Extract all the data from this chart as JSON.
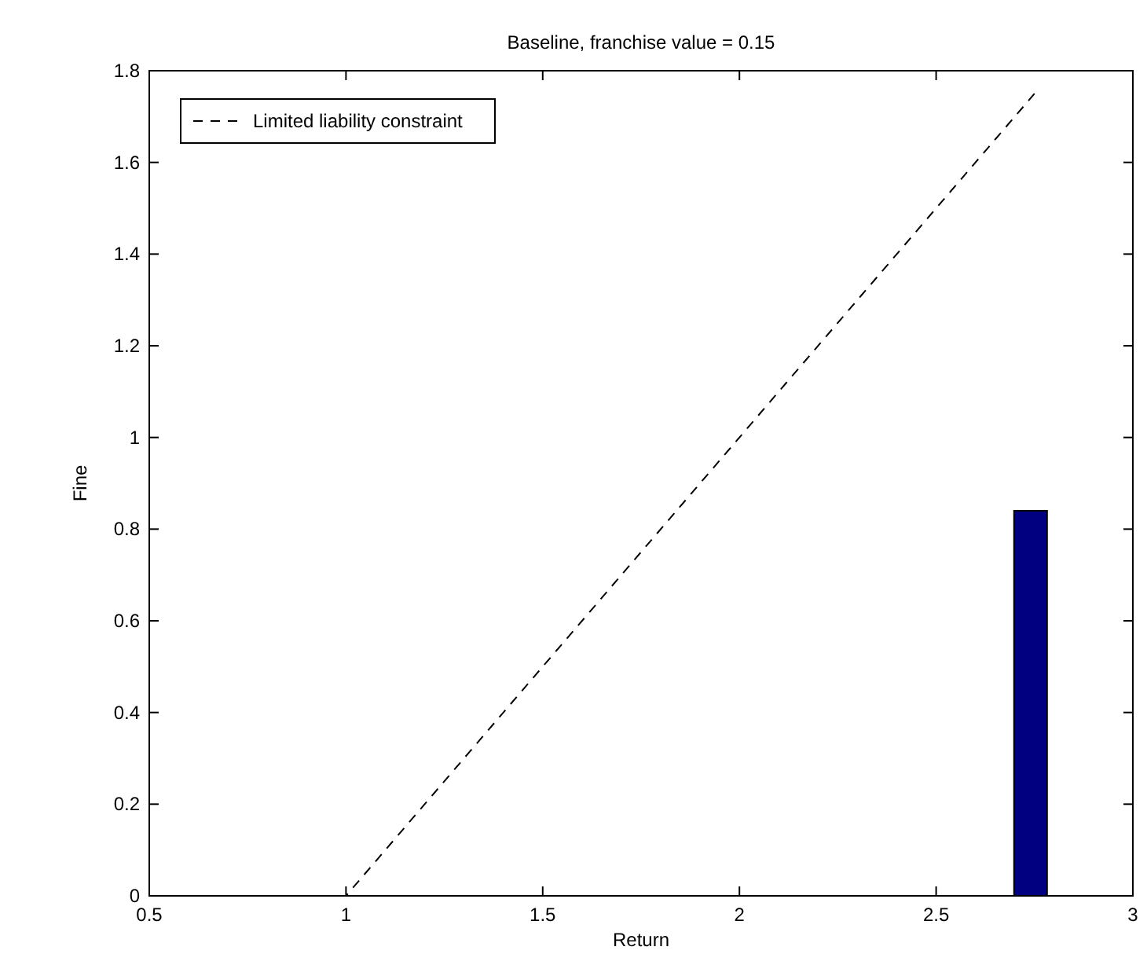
{
  "chart_data": {
    "type": "bar",
    "title": "Baseline, franchise value = 0.15",
    "xlabel": "Return",
    "ylabel": "Fine",
    "xlim": [
      0.5,
      3
    ],
    "xticks": [
      0.5,
      1,
      1.5,
      2,
      2.5,
      3
    ],
    "ylim": [
      0,
      1.8
    ],
    "yticks": [
      0,
      0.2,
      0.4,
      0.6,
      0.8,
      1,
      1.2,
      1.4,
      1.6,
      1.8
    ],
    "legend": "top left",
    "grid": false,
    "series": [
      {
        "color": "#000080",
        "x": [
          2.74
        ],
        "values": [
          0.84
        ]
      },
      {
        "type": "line",
        "name": "Limited liability constraint",
        "color": "#000000",
        "line_style": "dashed",
        "marker": "none",
        "x": [
          0.5,
          1,
          2.75
        ],
        "values": [
          0,
          0,
          1.75
        ]
      }
    ]
  }
}
